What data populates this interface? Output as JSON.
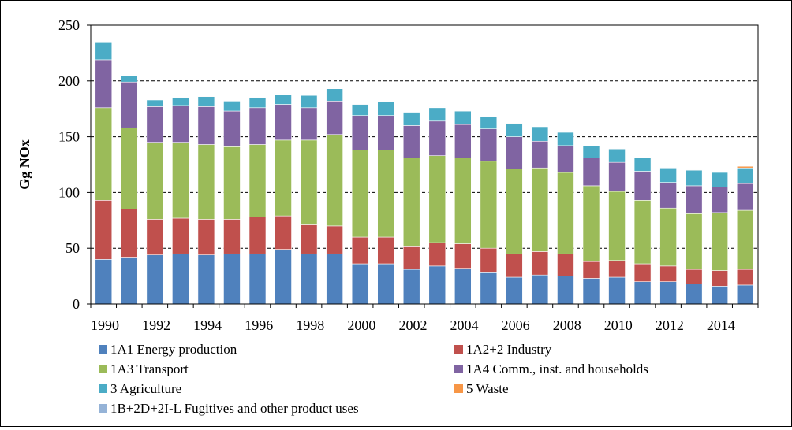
{
  "chart_data": {
    "type": "bar",
    "stacked": true,
    "ylabel": "Gg NOx",
    "xlabel": "",
    "ylim": [
      0,
      250
    ],
    "yticks": [
      0,
      50,
      100,
      150,
      200,
      250
    ],
    "grid": "horizontal dashed",
    "legend_position": "bottom",
    "categories": [
      "1990",
      "1991",
      "1992",
      "1993",
      "1994",
      "1995",
      "1996",
      "1997",
      "1998",
      "1999",
      "2000",
      "2001",
      "2002",
      "2003",
      "2004",
      "2005",
      "2006",
      "2007",
      "2008",
      "2009",
      "2010",
      "2011",
      "2012",
      "2013",
      "2014",
      "2015"
    ],
    "xtick_labels": [
      "1990",
      "",
      "1992",
      "",
      "1994",
      "",
      "1996",
      "",
      "1998",
      "",
      "2000",
      "",
      "2002",
      "",
      "2004",
      "",
      "2006",
      "",
      "2008",
      "",
      "2010",
      "",
      "2012",
      "",
      "2014",
      ""
    ],
    "series": [
      {
        "name": "1A1 Energy production",
        "color": "#4f81bd",
        "values": [
          40,
          42,
          44,
          45,
          44,
          45,
          45,
          49,
          45,
          45,
          36,
          36,
          31,
          34,
          32,
          28,
          24,
          26,
          25,
          23,
          24,
          20,
          20,
          18,
          16,
          17
        ]
      },
      {
        "name": "1A2+2 Industry",
        "color": "#c0504d",
        "values": [
          53,
          43,
          32,
          32,
          32,
          31,
          33,
          30,
          26,
          25,
          24,
          24,
          21,
          21,
          22,
          22,
          21,
          21,
          20,
          15,
          15,
          16,
          14,
          13,
          14,
          14
        ]
      },
      {
        "name": "1A3 Transport",
        "color": "#9bbb59",
        "values": [
          83,
          73,
          69,
          68,
          67,
          65,
          65,
          68,
          76,
          82,
          78,
          78,
          79,
          78,
          77,
          78,
          76,
          75,
          73,
          68,
          62,
          57,
          52,
          50,
          52,
          53
        ]
      },
      {
        "name": "1A4 Comm., inst. and households",
        "color": "#8064a2",
        "values": [
          43,
          41,
          32,
          33,
          34,
          32,
          33,
          32,
          29,
          30,
          31,
          31,
          29,
          31,
          30,
          29,
          29,
          24,
          24,
          25,
          26,
          26,
          23,
          25,
          23,
          24
        ]
      },
      {
        "name": "3 Agriculture",
        "color": "#4bacc6",
        "values": [
          16,
          6,
          6,
          7,
          9,
          9,
          9,
          9,
          11,
          11,
          10,
          12,
          12,
          12,
          12,
          11,
          12,
          13,
          12,
          11,
          12,
          12,
          13,
          14,
          13,
          14
        ]
      },
      {
        "name": "5 Waste",
        "color": "#f79646",
        "values": [
          0.3,
          0.3,
          0.3,
          0.3,
          0.3,
          0.3,
          0.3,
          0.3,
          0.3,
          0.3,
          0.3,
          0.3,
          0.3,
          0.3,
          0.3,
          0.3,
          0.3,
          0.3,
          0.3,
          0.3,
          0.3,
          0.3,
          0.3,
          0.3,
          0.3,
          1.5
        ]
      },
      {
        "name": "1B+2D+2I-L Fugitives and other product uses",
        "color": "#95b3d7",
        "values": [
          0.3,
          0.3,
          0.3,
          0.3,
          0.3,
          0.3,
          0.3,
          0.3,
          0.3,
          0.3,
          0.3,
          0.3,
          0.3,
          0.3,
          0.3,
          0.3,
          0.3,
          0.3,
          0.3,
          0.3,
          0.3,
          0.3,
          0.3,
          0.3,
          0.3,
          0.3
        ]
      }
    ]
  }
}
